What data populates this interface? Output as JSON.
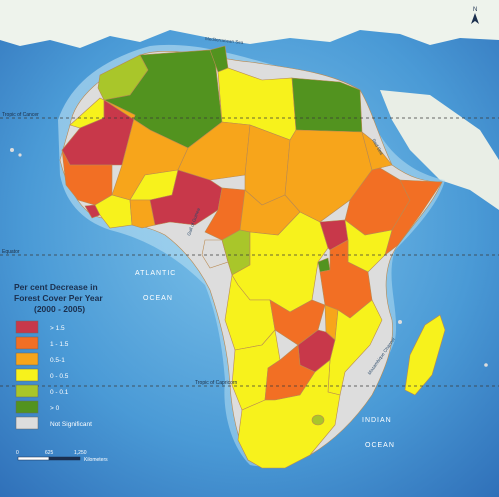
{
  "map": {
    "latitude_labels": [
      "Tropic of Cancer",
      "Equator",
      "Tropic of Capricorn"
    ],
    "ocean_labels": [
      "ATLANTIC",
      "OCEAN",
      "INDIAN",
      "OCEAN"
    ],
    "water_labels": [
      "Mediterranean Sea",
      "Red Sea",
      "Gulf of Guinea",
      "Mozambique Channel"
    ],
    "north_label": "N"
  },
  "legend": {
    "title_lines": [
      "Per cent Decrease in",
      "Forest Cover Per Year",
      "(2000 - 2005)"
    ],
    "items": [
      {
        "label": "> 1.5",
        "color": "#c8384a"
      },
      {
        "label": "1 - 1.5",
        "color": "#f26f24"
      },
      {
        "label": "0.5-1",
        "color": "#f7a51b"
      },
      {
        "label": "0 - 0.5",
        "color": "#f7f21c"
      },
      {
        "label": "0 - 0.1",
        "color": "#a9c62a"
      },
      {
        "label": "> 0",
        "color": "#52931f"
      },
      {
        "label": "Not Significant",
        "color": "#dddddd"
      }
    ]
  },
  "scale": {
    "ticks": [
      "0",
      "625",
      "1,250"
    ],
    "unit": "Kilometers"
  }
}
